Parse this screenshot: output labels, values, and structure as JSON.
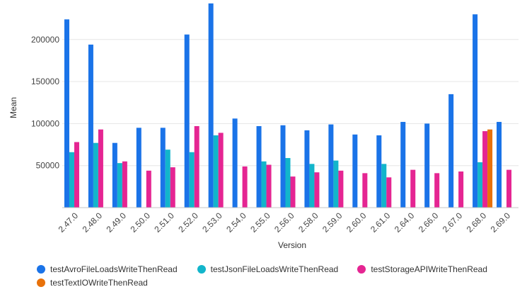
{
  "chart_data": {
    "type": "bar",
    "title": "",
    "xlabel": "Version",
    "ylabel": "Mean",
    "ylim": [
      0,
      242000
    ],
    "yticks": [
      50000,
      100000,
      150000,
      200000
    ],
    "ytick_labels": [
      "50000",
      "100000",
      "150000",
      "200000"
    ],
    "categories": [
      "2.47.0",
      "2.48.0",
      "2.49.0",
      "2.50.0",
      "2.51.0",
      "2.52.0",
      "2.53.0",
      "2.54.0",
      "2.55.0",
      "2.56.0",
      "2.58.0",
      "2.59.0",
      "2.60.0",
      "2.61.0",
      "2.64.0",
      "2.66.0",
      "2.67.0",
      "2.68.0",
      "2.69.0"
    ],
    "series": [
      {
        "name": "testAvroFileLoadsWriteThenRead",
        "color": "#1a73e8",
        "values": [
          224000,
          194000,
          77000,
          95000,
          95000,
          206000,
          243000,
          106000,
          97000,
          98000,
          92000,
          99000,
          87000,
          86000,
          102000,
          100000,
          135000,
          230000,
          102000
        ]
      },
      {
        "name": "testJsonFileLoadsWriteThenRead",
        "color": "#12b5cb",
        "values": [
          66000,
          77000,
          53000,
          null,
          69000,
          66000,
          86000,
          null,
          55000,
          59000,
          52000,
          56000,
          null,
          52000,
          null,
          null,
          null,
          54000,
          null
        ]
      },
      {
        "name": "testStorageAPIWriteThenRead",
        "color": "#e52592",
        "values": [
          78000,
          93000,
          55000,
          44000,
          48000,
          97000,
          89000,
          49000,
          51000,
          37000,
          42000,
          44000,
          41000,
          36000,
          45000,
          41000,
          43000,
          91000,
          45000
        ]
      },
      {
        "name": "testTextIOWriteThenRead",
        "color": "#e8710a",
        "values": [
          null,
          null,
          null,
          null,
          null,
          null,
          null,
          null,
          null,
          null,
          null,
          null,
          null,
          null,
          null,
          null,
          null,
          93000,
          null
        ]
      }
    ],
    "legend_position": "bottom",
    "grid": true
  }
}
